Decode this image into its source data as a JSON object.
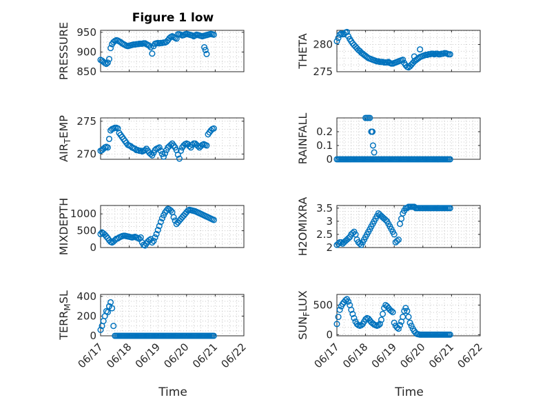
{
  "figure": {
    "title": "Figure 1 low",
    "xlabel": "Time",
    "xticks": [
      "06/17",
      "06/18",
      "06/19",
      "06/20",
      "06/21",
      "06/22"
    ],
    "marker_color": "#0072BD"
  },
  "chart_data": [
    {
      "type": "scatter",
      "ylabel": "PRESSURE",
      "title": "Figure 1 low",
      "yticks": [
        850,
        900,
        950
      ],
      "ylim": [
        850,
        955
      ],
      "xlim": [
        0,
        5
      ],
      "x": [
        0.0,
        0.05,
        0.1,
        0.15,
        0.2,
        0.25,
        0.3,
        0.35,
        0.4,
        0.45,
        0.5,
        0.55,
        0.6,
        0.65,
        0.7,
        0.75,
        0.8,
        0.85,
        0.9,
        0.95,
        1.0,
        1.05,
        1.1,
        1.15,
        1.2,
        1.25,
        1.3,
        1.35,
        1.4,
        1.45,
        1.5,
        1.55,
        1.6,
        1.65,
        1.7,
        1.75,
        1.8,
        1.85,
        1.9,
        1.95,
        2.0,
        2.05,
        2.1,
        2.15,
        2.2,
        2.25,
        2.3,
        2.35,
        2.4,
        2.45,
        2.5,
        2.55,
        2.6,
        2.65,
        2.7,
        2.75,
        2.8,
        2.85,
        2.9,
        2.95,
        3.0,
        3.05,
        3.1,
        3.15,
        3.2,
        3.25,
        3.3,
        3.35,
        3.4,
        3.45,
        3.5,
        3.55,
        3.6,
        3.65,
        3.7,
        3.75,
        3.8,
        3.85,
        3.9,
        3.95,
        3.62,
        3.66,
        3.7
      ],
      "y": [
        880,
        878,
        875,
        872,
        870,
        873,
        882,
        910,
        920,
        925,
        928,
        930,
        929,
        927,
        925,
        922,
        920,
        918,
        916,
        915,
        916,
        917,
        918,
        919,
        919,
        920,
        920,
        921,
        921,
        921,
        922,
        922,
        920,
        918,
        916,
        912,
        896,
        915,
        921,
        922,
        923,
        922,
        923,
        923,
        924,
        924,
        926,
        930,
        935,
        938,
        940,
        938,
        936,
        934,
        945,
        945,
        944,
        942,
        943,
        945,
        946,
        945,
        944,
        943,
        942,
        940,
        942,
        944,
        943,
        942,
        941,
        940,
        941,
        942,
        943,
        944,
        945,
        946,
        945,
        944,
        912,
        905,
        895
      ]
    },
    {
      "type": "scatter",
      "ylabel": "THETA",
      "yticks": [
        275,
        280
      ],
      "ylim": [
        275,
        282.6
      ],
      "xlim": [
        0,
        5
      ],
      "x": [
        0.0,
        0.05,
        0.1,
        0.15,
        0.2,
        0.25,
        0.3,
        0.35,
        0.4,
        0.45,
        0.5,
        0.55,
        0.6,
        0.65,
        0.7,
        0.75,
        0.8,
        0.85,
        0.9,
        0.95,
        1.0,
        1.05,
        1.1,
        1.15,
        1.2,
        1.25,
        1.3,
        1.35,
        1.4,
        1.45,
        1.5,
        1.55,
        1.6,
        1.65,
        1.7,
        1.75,
        1.8,
        1.85,
        1.9,
        1.95,
        2.0,
        2.05,
        2.1,
        2.15,
        2.2,
        2.25,
        2.3,
        2.35,
        2.4,
        2.45,
        2.5,
        2.55,
        2.6,
        2.65,
        2.7,
        2.75,
        2.8,
        2.85,
        2.9,
        2.95,
        3.0,
        3.05,
        3.1,
        3.15,
        3.2,
        3.25,
        3.3,
        3.35,
        3.4,
        3.45,
        3.5,
        3.55,
        3.6,
        3.65,
        3.7,
        3.75,
        3.8,
        3.85,
        3.9,
        3.95,
        2.7,
        2.9
      ],
      "y": [
        280.6,
        281.2,
        281.8,
        282.0,
        281.9,
        281.9,
        282.2,
        282.3,
        281.5,
        281.0,
        280.6,
        280.2,
        279.9,
        279.6,
        279.3,
        279.0,
        278.8,
        278.5,
        278.3,
        278.1,
        277.9,
        277.7,
        277.5,
        277.4,
        277.3,
        277.2,
        277.1,
        277.0,
        276.9,
        276.9,
        276.8,
        276.8,
        276.8,
        276.7,
        276.7,
        276.7,
        276.8,
        276.6,
        276.5,
        276.5,
        276.6,
        276.7,
        276.8,
        276.9,
        277.0,
        277.1,
        277.2,
        276.6,
        276.2,
        275.9,
        275.8,
        276.0,
        276.3,
        276.6,
        276.9,
        277.1,
        277.3,
        277.5,
        277.7,
        277.8,
        277.9,
        278.0,
        278.1,
        278.1,
        278.2,
        278.2,
        278.3,
        278.3,
        278.2,
        278.3,
        278.3,
        278.2,
        278.2,
        278.3,
        278.3,
        278.4,
        278.4,
        278.3,
        278.2,
        278.2,
        277.8,
        279.1
      ]
    },
    {
      "type": "scatter",
      "ylabel": "AIR_TEMP",
      "yticks": [
        270,
        275
      ],
      "ylim": [
        269.2,
        275.5
      ],
      "xlim": [
        0,
        5
      ],
      "x": [
        0.0,
        0.05,
        0.1,
        0.15,
        0.2,
        0.25,
        0.3,
        0.35,
        0.4,
        0.45,
        0.5,
        0.55,
        0.6,
        0.65,
        0.7,
        0.75,
        0.8,
        0.85,
        0.9,
        0.95,
        1.0,
        1.05,
        1.1,
        1.15,
        1.2,
        1.25,
        1.3,
        1.35,
        1.4,
        1.45,
        1.5,
        1.55,
        1.6,
        1.65,
        1.7,
        1.75,
        1.8,
        1.85,
        1.9,
        1.95,
        2.0,
        2.05,
        2.1,
        2.15,
        2.2,
        2.25,
        2.3,
        2.35,
        2.4,
        2.45,
        2.5,
        2.55,
        2.6,
        2.65,
        2.7,
        2.75,
        2.8,
        2.85,
        2.9,
        2.95,
        3.0,
        3.05,
        3.1,
        3.15,
        3.2,
        3.25,
        3.3,
        3.35,
        3.4,
        3.45,
        3.5,
        3.55,
        3.6,
        3.65,
        3.7,
        3.75,
        3.8,
        3.85,
        3.9,
        3.95
      ],
      "y": [
        270.5,
        270.6,
        270.8,
        271.0,
        271.1,
        271.0,
        272.3,
        273.6,
        273.8,
        273.9,
        274.0,
        274.0,
        273.9,
        273.2,
        272.9,
        272.6,
        272.3,
        272.0,
        271.7,
        271.4,
        271.3,
        271.2,
        271.0,
        270.9,
        270.8,
        270.6,
        270.6,
        270.5,
        270.5,
        270.4,
        270.5,
        270.6,
        270.8,
        270.5,
        270.2,
        270.0,
        269.8,
        270.2,
        270.6,
        270.8,
        270.9,
        271.0,
        270.5,
        270.0,
        269.6,
        270.1,
        270.6,
        271.0,
        271.2,
        271.4,
        271.6,
        271.3,
        271.0,
        270.6,
        269.9,
        269.3,
        270.5,
        271.0,
        271.3,
        271.5,
        271.6,
        271.5,
        271.2,
        271.0,
        271.4,
        271.6,
        271.6,
        271.4,
        271.2,
        271.0,
        271.2,
        271.4,
        271.5,
        271.4,
        271.3,
        273.0,
        273.3,
        273.6,
        273.8,
        273.9
      ]
    },
    {
      "type": "scatter",
      "ylabel": "RAINFALL",
      "yticks": [
        0,
        0.1,
        0.2
      ],
      "ylim": [
        0,
        0.3
      ],
      "xlim": [
        0,
        5
      ],
      "x": [
        0.0,
        0.05,
        0.1,
        0.15,
        0.2,
        0.25,
        0.3,
        0.35,
        0.4,
        0.45,
        0.5,
        0.55,
        0.6,
        0.65,
        0.7,
        0.75,
        0.8,
        0.85,
        0.9,
        0.95,
        1.0,
        1.05,
        1.1,
        1.15,
        1.2,
        1.25,
        1.3,
        1.35,
        1.4,
        1.45,
        1.5,
        1.55,
        1.6,
        1.65,
        1.7,
        1.75,
        1.8,
        1.85,
        1.9,
        1.95,
        2.0,
        2.05,
        2.1,
        2.15,
        2.2,
        2.25,
        2.3,
        2.35,
        2.4,
        2.45,
        2.5,
        2.55,
        2.6,
        2.65,
        2.7,
        2.75,
        2.8,
        2.85,
        2.9,
        2.95,
        3.0,
        3.05,
        3.1,
        3.15,
        3.2,
        3.25,
        3.3,
        3.35,
        3.4,
        3.45,
        3.5,
        3.55,
        3.6,
        3.65,
        3.7,
        3.75,
        3.8,
        3.85,
        3.9,
        3.95,
        1.0,
        1.05,
        1.1,
        1.15,
        1.2,
        1.22,
        1.24,
        1.26,
        1.3
      ],
      "y": [
        0,
        0,
        0,
        0,
        0,
        0,
        0,
        0,
        0,
        0,
        0,
        0,
        0,
        0,
        0,
        0,
        0,
        0,
        0,
        0,
        0,
        0,
        0,
        0,
        0,
        0,
        0,
        0,
        0,
        0,
        0,
        0,
        0,
        0,
        0,
        0,
        0,
        0,
        0,
        0,
        0,
        0,
        0,
        0,
        0,
        0,
        0,
        0,
        0,
        0,
        0,
        0,
        0,
        0,
        0,
        0,
        0,
        0,
        0,
        0,
        0,
        0,
        0,
        0,
        0,
        0,
        0,
        0,
        0,
        0,
        0,
        0,
        0,
        0,
        0,
        0,
        0,
        0,
        0,
        0,
        0.3,
        0.3,
        0.3,
        0.3,
        0.2,
        0.2,
        0.2,
        0.1,
        0.05
      ]
    },
    {
      "type": "scatter",
      "ylabel": "MIXDEPTH",
      "yticks": [
        0,
        500,
        1000
      ],
      "ylim": [
        0,
        1250
      ],
      "xlim": [
        0,
        5
      ],
      "x": [
        0.0,
        0.05,
        0.1,
        0.15,
        0.2,
        0.25,
        0.3,
        0.35,
        0.4,
        0.45,
        0.5,
        0.55,
        0.6,
        0.65,
        0.7,
        0.75,
        0.8,
        0.85,
        0.9,
        0.95,
        1.0,
        1.05,
        1.1,
        1.15,
        1.2,
        1.25,
        1.3,
        1.35,
        1.4,
        1.45,
        1.5,
        1.55,
        1.6,
        1.65,
        1.7,
        1.75,
        1.8,
        1.85,
        1.9,
        1.95,
        2.0,
        2.05,
        2.1,
        2.15,
        2.2,
        2.25,
        2.3,
        2.35,
        2.4,
        2.45,
        2.5,
        2.55,
        2.6,
        2.65,
        2.7,
        2.75,
        2.8,
        2.85,
        2.9,
        2.95,
        3.0,
        3.05,
        3.1,
        3.15,
        3.2,
        3.25,
        3.3,
        3.35,
        3.4,
        3.45,
        3.5,
        3.55,
        3.6,
        3.65,
        3.7,
        3.75,
        3.8,
        3.85,
        3.9,
        3.95
      ],
      "y": [
        400,
        450,
        420,
        380,
        330,
        280,
        220,
        170,
        150,
        180,
        220,
        260,
        270,
        300,
        320,
        340,
        350,
        350,
        340,
        330,
        320,
        310,
        300,
        310,
        320,
        300,
        280,
        260,
        300,
        150,
        80,
        60,
        120,
        180,
        220,
        250,
        150,
        200,
        300,
        400,
        520,
        640,
        760,
        870,
        960,
        1040,
        1100,
        1150,
        1130,
        1100,
        1050,
        900,
        800,
        700,
        750,
        800,
        850,
        900,
        950,
        1000,
        1050,
        1100,
        1120,
        1110,
        1100,
        1090,
        1080,
        1060,
        1040,
        1020,
        1000,
        980,
        960,
        940,
        920,
        900,
        880,
        860,
        840,
        820
      ]
    },
    {
      "type": "scatter",
      "ylabel": "H2OMIXRA",
      "yticks": [
        2,
        2.5,
        3,
        3.5
      ],
      "ylim": [
        2,
        3.6
      ],
      "xlim": [
        0,
        5
      ],
      "x": [
        0.0,
        0.05,
        0.1,
        0.15,
        0.2,
        0.25,
        0.3,
        0.35,
        0.4,
        0.45,
        0.5,
        0.55,
        0.6,
        0.65,
        0.7,
        0.75,
        0.8,
        0.85,
        0.9,
        0.95,
        1.0,
        1.05,
        1.1,
        1.15,
        1.2,
        1.25,
        1.3,
        1.35,
        1.4,
        1.45,
        1.5,
        1.55,
        1.6,
        1.65,
        1.7,
        1.75,
        1.8,
        1.85,
        1.9,
        1.95,
        2.0,
        2.05,
        2.1,
        2.15,
        2.2,
        2.25,
        2.3,
        2.35,
        2.4,
        2.45,
        2.5,
        2.55,
        2.6,
        2.65,
        2.7,
        2.75,
        2.8,
        2.85,
        2.9,
        2.95,
        3.0,
        3.05,
        3.1,
        3.15,
        3.2,
        3.25,
        3.3,
        3.35,
        3.4,
        3.45,
        3.5,
        3.55,
        3.6,
        3.65,
        3.7,
        3.75,
        3.8,
        3.85,
        3.9,
        3.95
      ],
      "y": [
        2.1,
        2.15,
        2.2,
        2.2,
        2.15,
        2.2,
        2.25,
        2.3,
        2.35,
        2.4,
        2.5,
        2.55,
        2.6,
        2.5,
        2.3,
        2.2,
        2.15,
        2.1,
        2.2,
        2.3,
        2.4,
        2.5,
        2.6,
        2.7,
        2.8,
        2.9,
        3.0,
        3.1,
        3.2,
        3.3,
        3.25,
        3.2,
        3.15,
        3.1,
        3.05,
        3.0,
        2.9,
        2.8,
        2.7,
        2.6,
        2.5,
        2.2,
        2.25,
        2.3,
        2.9,
        3.1,
        3.3,
        3.4,
        3.5,
        3.5,
        3.55,
        3.55,
        3.55,
        3.55,
        3.55,
        3.5,
        3.5,
        3.5,
        3.5,
        3.5,
        3.5,
        3.5,
        3.5,
        3.5,
        3.5,
        3.5,
        3.5,
        3.5,
        3.5,
        3.5,
        3.5,
        3.5,
        3.5,
        3.5,
        3.5,
        3.5,
        3.5,
        3.5,
        3.5,
        3.5
      ]
    },
    {
      "type": "scatter",
      "ylabel": "TERR_MSL",
      "yticks": [
        0,
        200,
        400
      ],
      "ylim": [
        0,
        420
      ],
      "xlim": [
        0,
        5
      ],
      "x": [
        0.0,
        0.05,
        0.1,
        0.15,
        0.2,
        0.25,
        0.3,
        0.35,
        0.4,
        0.45,
        0.5,
        0.55,
        0.6,
        0.65,
        0.7,
        0.75,
        0.8,
        0.85,
        0.9,
        0.95,
        1.0,
        1.05,
        1.1,
        1.15,
        1.2,
        1.25,
        1.3,
        1.35,
        1.4,
        1.45,
        1.5,
        1.55,
        1.6,
        1.65,
        1.7,
        1.75,
        1.8,
        1.85,
        1.9,
        1.95,
        2.0,
        2.05,
        2.1,
        2.15,
        2.2,
        2.25,
        2.3,
        2.35,
        2.4,
        2.45,
        2.5,
        2.55,
        2.6,
        2.65,
        2.7,
        2.75,
        2.8,
        2.85,
        2.9,
        2.95,
        3.0,
        3.05,
        3.1,
        3.15,
        3.2,
        3.25,
        3.3,
        3.35,
        3.4,
        3.45,
        3.5,
        3.55,
        3.6,
        3.65,
        3.7,
        3.75,
        3.8,
        3.85,
        3.9,
        3.95
      ],
      "y": [
        60,
        100,
        150,
        200,
        250,
        240,
        300,
        340,
        280,
        100,
        0,
        0,
        0,
        0,
        0,
        0,
        0,
        0,
        0,
        0,
        0,
        0,
        0,
        0,
        0,
        0,
        0,
        0,
        0,
        0,
        0,
        0,
        0,
        0,
        0,
        0,
        0,
        0,
        0,
        0,
        0,
        0,
        0,
        0,
        0,
        0,
        0,
        0,
        0,
        0,
        0,
        0,
        0,
        0,
        0,
        0,
        0,
        0,
        0,
        0,
        0,
        0,
        0,
        0,
        0,
        0,
        0,
        0,
        0,
        0,
        0,
        0,
        0,
        0,
        0,
        0,
        0,
        0,
        0,
        0
      ]
    },
    {
      "type": "scatter",
      "ylabel": "SUN_FLUX",
      "yticks": [
        0,
        500
      ],
      "ylim": [
        -20,
        680
      ],
      "xlim": [
        0,
        5
      ],
      "x": [
        0.0,
        0.05,
        0.1,
        0.15,
        0.2,
        0.25,
        0.3,
        0.35,
        0.4,
        0.45,
        0.5,
        0.55,
        0.6,
        0.65,
        0.7,
        0.75,
        0.8,
        0.85,
        0.9,
        0.95,
        1.0,
        1.05,
        1.1,
        1.15,
        1.2,
        1.25,
        1.3,
        1.35,
        1.4,
        1.45,
        1.5,
        1.55,
        1.6,
        1.65,
        1.7,
        1.75,
        1.8,
        1.85,
        1.9,
        1.95,
        2.0,
        2.05,
        2.1,
        2.15,
        2.2,
        2.25,
        2.3,
        2.35,
        2.4,
        2.45,
        2.5,
        2.55,
        2.6,
        2.65,
        2.7,
        2.75,
        2.8,
        2.85,
        2.9,
        2.95,
        3.0,
        3.05,
        3.1,
        3.15,
        3.2,
        3.25,
        3.3,
        3.35,
        3.4,
        3.45,
        3.5,
        3.55,
        3.6,
        3.65,
        3.7,
        3.75,
        3.8,
        3.85,
        3.9,
        3.95
      ],
      "y": [
        180,
        300,
        420,
        480,
        520,
        550,
        580,
        600,
        560,
        500,
        420,
        350,
        280,
        220,
        180,
        160,
        150,
        160,
        180,
        220,
        260,
        280,
        270,
        240,
        210,
        190,
        170,
        160,
        150,
        160,
        180,
        250,
        350,
        450,
        500,
        480,
        450,
        420,
        400,
        380,
        200,
        150,
        120,
        100,
        160,
        220,
        300,
        400,
        450,
        400,
        300,
        200,
        150,
        100,
        60,
        30,
        10,
        5,
        0,
        0,
        0,
        0,
        0,
        0,
        0,
        0,
        0,
        0,
        0,
        0,
        0,
        0,
        0,
        0,
        0,
        0,
        0,
        0,
        0,
        0
      ]
    }
  ]
}
